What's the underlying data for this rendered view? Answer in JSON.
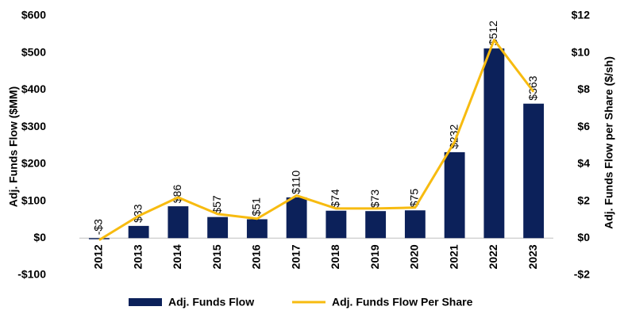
{
  "chart_data": {
    "type": "bar-line",
    "categories": [
      "2012",
      "2013",
      "2014",
      "2015",
      "2016",
      "2017",
      "2018",
      "2019",
      "2020",
      "2021",
      "2022",
      "2023"
    ],
    "series": [
      {
        "name": "Adj. Funds Flow",
        "type": "bar",
        "color": "#0c215a",
        "values": [
          -3,
          33,
          86,
          57,
          51,
          110,
          74,
          73,
          75,
          232,
          512,
          363
        ],
        "value_labels": [
          "-$3",
          "$33",
          "$86",
          "$57",
          "$51",
          "$110",
          "$74",
          "$73",
          "$75",
          "$232",
          "$512",
          "$363"
        ]
      },
      {
        "name": "Adj. Funds Flow Per Share",
        "type": "line",
        "axis": "y2",
        "color": "#f7bb10",
        "values": [
          -0.1,
          1.2,
          2.2,
          1.3,
          1.05,
          2.3,
          1.6,
          1.6,
          1.65,
          5.2,
          10.7,
          7.9
        ]
      }
    ],
    "y_label": "Adj. Funds Flow ($MM)",
    "y2_label": "Adj. Funds Flow per Share ($/sh)",
    "ylim": [
      -100,
      600
    ],
    "yticks": [
      {
        "value": -100,
        "label": "-$100"
      },
      {
        "value": 0,
        "label": "$0"
      },
      {
        "value": 100,
        "label": "$100"
      },
      {
        "value": 200,
        "label": "$200"
      },
      {
        "value": 300,
        "label": "$300"
      },
      {
        "value": 400,
        "label": "$400"
      },
      {
        "value": 500,
        "label": "$500"
      },
      {
        "value": 600,
        "label": "$600"
      }
    ],
    "y2lim": [
      -2,
      12
    ],
    "y2ticks": [
      {
        "value": -2,
        "label": "-$2"
      },
      {
        "value": 0,
        "label": "$0"
      },
      {
        "value": 2,
        "label": "$2"
      },
      {
        "value": 4,
        "label": "$4"
      },
      {
        "value": 6,
        "label": "$6"
      },
      {
        "value": 8,
        "label": "$8"
      },
      {
        "value": 10,
        "label": "$10"
      },
      {
        "value": 12,
        "label": "$12"
      }
    ],
    "legend": "bottom"
  }
}
